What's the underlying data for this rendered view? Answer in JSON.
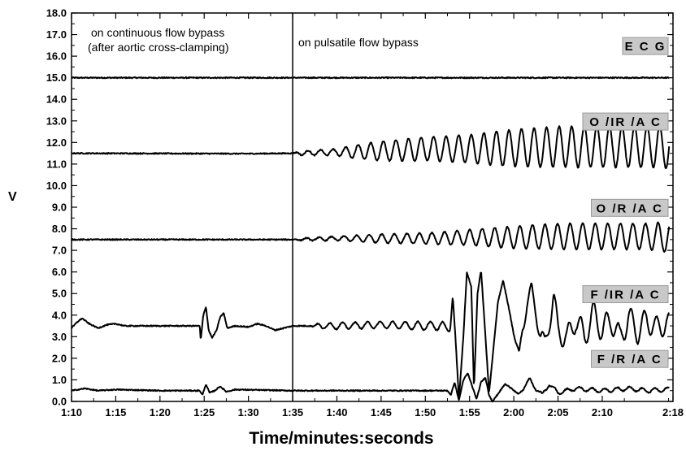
{
  "chart_data": {
    "type": "line",
    "title": "",
    "xlabel": "Time/minutes:seconds",
    "ylabel": "V",
    "xlim": [
      70,
      138
    ],
    "ylim": [
      0,
      18
    ],
    "x_ticks": [
      "1:10",
      "1:15",
      "1:20",
      "1:25",
      "1:30",
      "1:35",
      "1:40",
      "1:45",
      "1:50",
      "1:55",
      "2:00",
      "2:05",
      "2:10",
      "2:18"
    ],
    "y_ticks": [
      "0.0",
      "1.0",
      "2.0",
      "3.0",
      "4.0",
      "5.0",
      "6.0",
      "7.0",
      "8.0",
      "9.0",
      "10.0",
      "11.0",
      "12.0",
      "13.0",
      "14.0",
      "15.0",
      "16.0",
      "17.0",
      "18.0"
    ],
    "grid": false,
    "annotations": {
      "left_line1": "on continuous flow bypass",
      "left_line2": "(after aortic cross-clamping)",
      "right": "on pulsatile flow bypass"
    },
    "marker_time": "1:35",
    "series": [
      {
        "name": "E C G",
        "baseline": 15.0,
        "points": [
          [
            70,
            15.0
          ],
          [
            138,
            15.0
          ]
        ]
      },
      {
        "name": "O /IR /A C",
        "baseline": 11.5,
        "points": [
          [
            70,
            11.5
          ],
          [
            90,
            11.48
          ],
          [
            95,
            11.5
          ],
          [
            100,
            11.55
          ],
          [
            105,
            11.6
          ],
          [
            110,
            11.7
          ],
          [
            115,
            11.7
          ],
          [
            120,
            11.75
          ],
          [
            125,
            11.8
          ],
          [
            130,
            11.8
          ],
          [
            135,
            11.8
          ],
          [
            137.5,
            11.8
          ]
        ],
        "oscillation_amplitude": [
          [
            70,
            0
          ],
          [
            95,
            0
          ],
          [
            96,
            0.1
          ],
          [
            100,
            0.15
          ],
          [
            102,
            0.3
          ],
          [
            105,
            0.45
          ],
          [
            110,
            0.55
          ],
          [
            115,
            0.65
          ],
          [
            118,
            0.8
          ],
          [
            122,
            0.9
          ],
          [
            126,
            0.95
          ],
          [
            130,
            0.95
          ],
          [
            135,
            0.95
          ],
          [
            137.5,
            1.0
          ]
        ]
      },
      {
        "name": "O /R /A C",
        "baseline": 7.5,
        "points": [
          [
            70,
            7.5
          ],
          [
            95,
            7.5
          ],
          [
            100,
            7.55
          ],
          [
            105,
            7.55
          ],
          [
            110,
            7.55
          ],
          [
            115,
            7.6
          ],
          [
            120,
            7.6
          ],
          [
            125,
            7.65
          ],
          [
            130,
            7.65
          ],
          [
            135,
            7.65
          ],
          [
            137.5,
            7.6
          ]
        ],
        "oscillation_amplitude": [
          [
            70,
            0
          ],
          [
            95,
            0
          ],
          [
            96,
            0.05
          ],
          [
            100,
            0.1
          ],
          [
            105,
            0.2
          ],
          [
            110,
            0.25
          ],
          [
            115,
            0.35
          ],
          [
            118,
            0.45
          ],
          [
            122,
            0.55
          ],
          [
            126,
            0.6
          ],
          [
            130,
            0.6
          ],
          [
            135,
            0.6
          ],
          [
            137.5,
            0.7
          ]
        ]
      },
      {
        "name": "F /IR /A C",
        "baseline": 3.5,
        "points": [
          [
            70,
            3.4
          ],
          [
            70.7,
            3.7
          ],
          [
            71.2,
            3.85
          ],
          [
            72,
            3.6
          ],
          [
            73,
            3.4
          ],
          [
            74,
            3.55
          ],
          [
            75,
            3.6
          ],
          [
            76,
            3.5
          ],
          [
            78,
            3.5
          ],
          [
            84.5,
            3.5
          ],
          [
            84.6,
            2.8
          ],
          [
            84.9,
            4.0
          ],
          [
            85.2,
            4.4
          ],
          [
            85.5,
            3.3
          ],
          [
            85.9,
            2.95
          ],
          [
            86.4,
            3.3
          ],
          [
            86.8,
            3.9
          ],
          [
            87.2,
            4.1
          ],
          [
            87.6,
            3.4
          ],
          [
            88.5,
            3.5
          ],
          [
            90,
            3.45
          ],
          [
            91,
            3.6
          ],
          [
            92,
            3.5
          ],
          [
            93,
            3.3
          ],
          [
            94,
            3.4
          ],
          [
            95,
            3.5
          ],
          [
            100,
            3.5
          ],
          [
            105,
            3.55
          ],
          [
            110,
            3.5
          ],
          [
            112,
            3.5
          ],
          [
            112.8,
            3.3
          ],
          [
            113.1,
            4.9
          ],
          [
            113.4,
            3.0
          ],
          [
            113.8,
            0.1
          ],
          [
            114.3,
            3.0
          ],
          [
            114.7,
            6.0
          ],
          [
            115.2,
            5.3
          ],
          [
            115.5,
            0.5
          ],
          [
            115.9,
            5.0
          ],
          [
            116.3,
            6.1
          ],
          [
            116.8,
            3.0
          ],
          [
            117.2,
            0.4
          ],
          [
            117.6,
            2.0
          ],
          [
            118.2,
            4.6
          ],
          [
            118.8,
            5.6
          ],
          [
            119.5,
            4.2
          ],
          [
            120.0,
            3.1
          ],
          [
            120.6,
            2.1
          ],
          [
            121.0,
            3.5
          ],
          [
            121.5,
            4.5
          ],
          [
            122.0,
            5.1
          ],
          [
            122.5,
            4.3
          ],
          [
            123.0,
            3.0
          ],
          [
            123.5,
            2.6
          ],
          [
            124.0,
            3.7
          ],
          [
            124.5,
            4.8
          ],
          [
            125,
            3.3
          ],
          [
            126,
            2.9
          ],
          [
            127,
            3.8
          ],
          [
            128,
            3.0
          ],
          [
            129,
            4.1
          ],
          [
            130,
            3.3
          ],
          [
            131,
            3.8
          ],
          [
            132,
            2.9
          ],
          [
            133,
            3.9
          ],
          [
            134,
            3.2
          ],
          [
            135,
            3.8
          ],
          [
            136,
            3.4
          ],
          [
            137.5,
            3.6
          ]
        ],
        "oscillation_amplitude": [
          [
            70,
            0
          ],
          [
            97,
            0
          ],
          [
            98,
            0.12
          ],
          [
            100,
            0.15
          ],
          [
            105,
            0.15
          ],
          [
            110,
            0.2
          ],
          [
            112,
            0.2
          ],
          [
            113,
            0
          ],
          [
            120,
            0
          ],
          [
            121,
            0.35
          ],
          [
            125,
            0.55
          ],
          [
            130,
            0.6
          ],
          [
            135,
            0.55
          ],
          [
            137.5,
            0.5
          ]
        ]
      },
      {
        "name": "F /R /A C",
        "baseline": 0.5,
        "points": [
          [
            70,
            0.5
          ],
          [
            71.5,
            0.6
          ],
          [
            73,
            0.5
          ],
          [
            75,
            0.55
          ],
          [
            80,
            0.5
          ],
          [
            84.5,
            0.5
          ],
          [
            84.8,
            0.3
          ],
          [
            85.2,
            0.8
          ],
          [
            85.6,
            0.4
          ],
          [
            86.2,
            0.5
          ],
          [
            86.8,
            0.7
          ],
          [
            87.5,
            0.45
          ],
          [
            88.5,
            0.55
          ],
          [
            95,
            0.5
          ],
          [
            100,
            0.5
          ],
          [
            105,
            0.5
          ],
          [
            110,
            0.5
          ],
          [
            112.5,
            0.5
          ],
          [
            112.9,
            0.3
          ],
          [
            113.3,
            0.9
          ],
          [
            113.8,
            0.05
          ],
          [
            114.3,
            1.0
          ],
          [
            114.8,
            1.3
          ],
          [
            115.3,
            0.7
          ],
          [
            115.8,
            0.1
          ],
          [
            116.3,
            0.9
          ],
          [
            116.8,
            1.1
          ],
          [
            117.2,
            0.3
          ],
          [
            117.6,
            0.0
          ],
          [
            118.3,
            0.4
          ],
          [
            119,
            0.8
          ],
          [
            119.8,
            0.6
          ],
          [
            120.5,
            0.3
          ],
          [
            121.2,
            0.7
          ],
          [
            121.8,
            1.0
          ],
          [
            122.5,
            0.6
          ],
          [
            123.2,
            0.3
          ],
          [
            124,
            0.8
          ],
          [
            125,
            0.4
          ],
          [
            127,
            0.6
          ],
          [
            130,
            0.5
          ],
          [
            133,
            0.6
          ],
          [
            135,
            0.5
          ],
          [
            137.5,
            0.55
          ]
        ],
        "oscillation_amplitude": [
          [
            70,
            0
          ],
          [
            120,
            0
          ],
          [
            121,
            0.08
          ],
          [
            137.5,
            0.1
          ]
        ]
      }
    ]
  }
}
